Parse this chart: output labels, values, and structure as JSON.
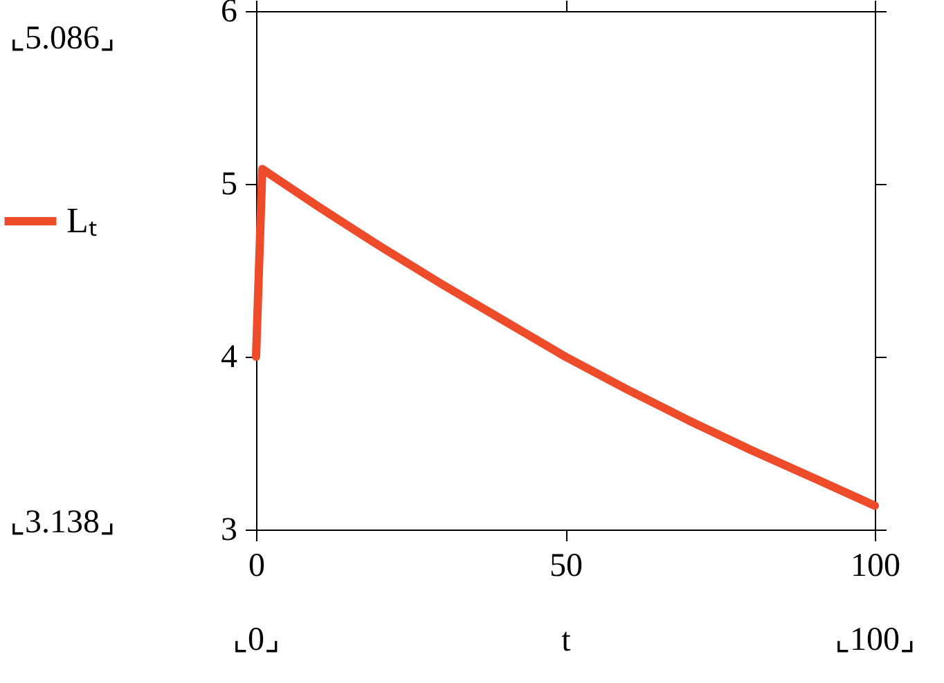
{
  "chart_data": {
    "type": "line",
    "xlabel": "t",
    "legend": "left",
    "line_style": "solid",
    "marker": "none",
    "grid": false,
    "xlim": [
      0,
      100
    ],
    "xticks": [
      0,
      50,
      100
    ],
    "ylim": [
      3,
      6
    ],
    "yticks": [
      3,
      4,
      5,
      6
    ],
    "x": [
      0,
      1,
      10,
      20,
      30,
      40,
      50,
      60,
      70,
      80,
      90,
      100
    ],
    "series": [
      {
        "name": "Lₜ",
        "color": "#ee4b2b",
        "values": [
          4,
          5.086,
          4.87,
          4.64,
          4.42,
          4.21,
          4.0,
          3.81,
          3.63,
          3.46,
          3.3,
          3.138
        ]
      }
    ],
    "annotations": [
      "⌞5.086⌟",
      "⌞3.138⌟",
      "⌞0⌟",
      "⌞100⌟"
    ]
  }
}
